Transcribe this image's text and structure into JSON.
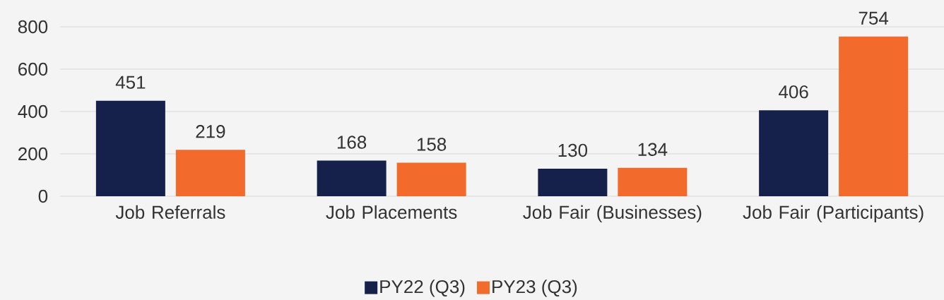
{
  "chart_data": {
    "type": "bar",
    "categories": [
      "Job Referrals",
      "Job Placements",
      "Job Fair (Businesses)",
      "Job Fair (Participants)"
    ],
    "series": [
      {
        "name": "PY22 (Q3)",
        "color": "#15214b",
        "values": [
          451,
          168,
          130,
          406
        ]
      },
      {
        "name": "PY23 (Q3)",
        "color": "#f26a2c",
        "values": [
          219,
          158,
          134,
          754
        ]
      }
    ],
    "ylim": [
      0,
      800
    ],
    "yticks": [
      0,
      200,
      400,
      600,
      800
    ],
    "grid": "y",
    "legend": "bottom",
    "data_labels": true
  }
}
